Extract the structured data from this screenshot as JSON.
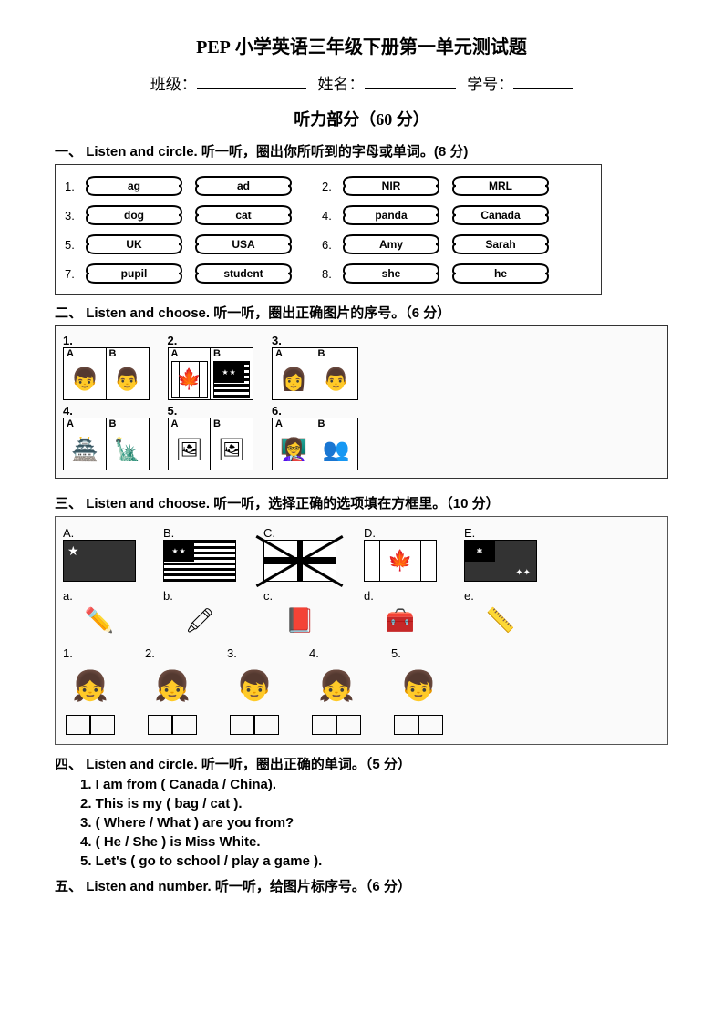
{
  "title": {
    "pep": "PEP",
    "rest": " 小学英语三年级下册第一单元测试题"
  },
  "form": {
    "class": "班级：",
    "name": "姓名：",
    "id": "学号："
  },
  "listening_header": "听力部分（60 分）",
  "s1": {
    "head_num": "一、",
    "head_en": " Listen and circle.",
    "head_cn": " 听一听，圈出你所听到的字母或单词。(8 分)",
    "rows": [
      {
        "n1": "1.",
        "a": "ag",
        "b": "ad",
        "n2": "2.",
        "c": "NIR",
        "d": "MRL"
      },
      {
        "n1": "3.",
        "a": "dog",
        "b": "cat",
        "n2": "4.",
        "c": "panda",
        "d": "Canada"
      },
      {
        "n1": "5.",
        "a": "UK",
        "b": "USA",
        "n2": "6.",
        "c": "Amy",
        "d": "Sarah"
      },
      {
        "n1": "7.",
        "a": "pupil",
        "b": "student",
        "n2": "8.",
        "c": "she",
        "d": "he"
      }
    ]
  },
  "s2": {
    "head_num": "二、",
    "head_en": "Listen and choose.",
    "head_cn": " 听一听，圈出正确图片的序号。（6 分）",
    "items": [
      {
        "n": "1.",
        "a": "👦",
        "b": "👨"
      },
      {
        "n": "2.",
        "a": "CA",
        "b": "US"
      },
      {
        "n": "3.",
        "a": "👩",
        "b": "👨"
      },
      {
        "n": "4.",
        "a": "🏯",
        "b": "🗽"
      },
      {
        "n": "5.",
        "a": "🖼",
        "b": "🖼"
      },
      {
        "n": "6.",
        "a": "👩‍🏫",
        "b": "👥"
      }
    ]
  },
  "s3": {
    "head_num": "三、",
    "head_en": "Listen and choose.",
    "head_cn": " 听一听，选择正确的选项填在方框里。（10 分）",
    "flags": [
      "A.",
      "B.",
      "C.",
      "D.",
      "E."
    ],
    "tools_labels": [
      "a.",
      "b.",
      "c.",
      "d.",
      "e."
    ],
    "tools": [
      "✏️",
      "🖍",
      "📕",
      "🧰",
      "📏"
    ],
    "kids_labels": [
      "1.",
      "2.",
      "3.",
      "4.",
      "5."
    ],
    "kids": [
      "👧",
      "👧",
      "👦",
      "👧",
      "👦"
    ]
  },
  "s4": {
    "head_num": "四、",
    "head_en": "Listen and circle.",
    "head_cn": "听一听，圈出正确的单词。（5 分）",
    "lines": [
      "1. I am from ( Canada / China).",
      "2. This is my ( bag / cat ).",
      "3. ( Where / What ) are you from?",
      "4. ( He / She ) is Miss White.",
      "5. Let's ( go to school / play a game )."
    ]
  },
  "s5": {
    "head_num": "五、",
    "head_en": "Listen and number.",
    "head_cn": " 听一听，给图片标序号。（6 分）"
  },
  "labelA": "A",
  "labelB": "B"
}
